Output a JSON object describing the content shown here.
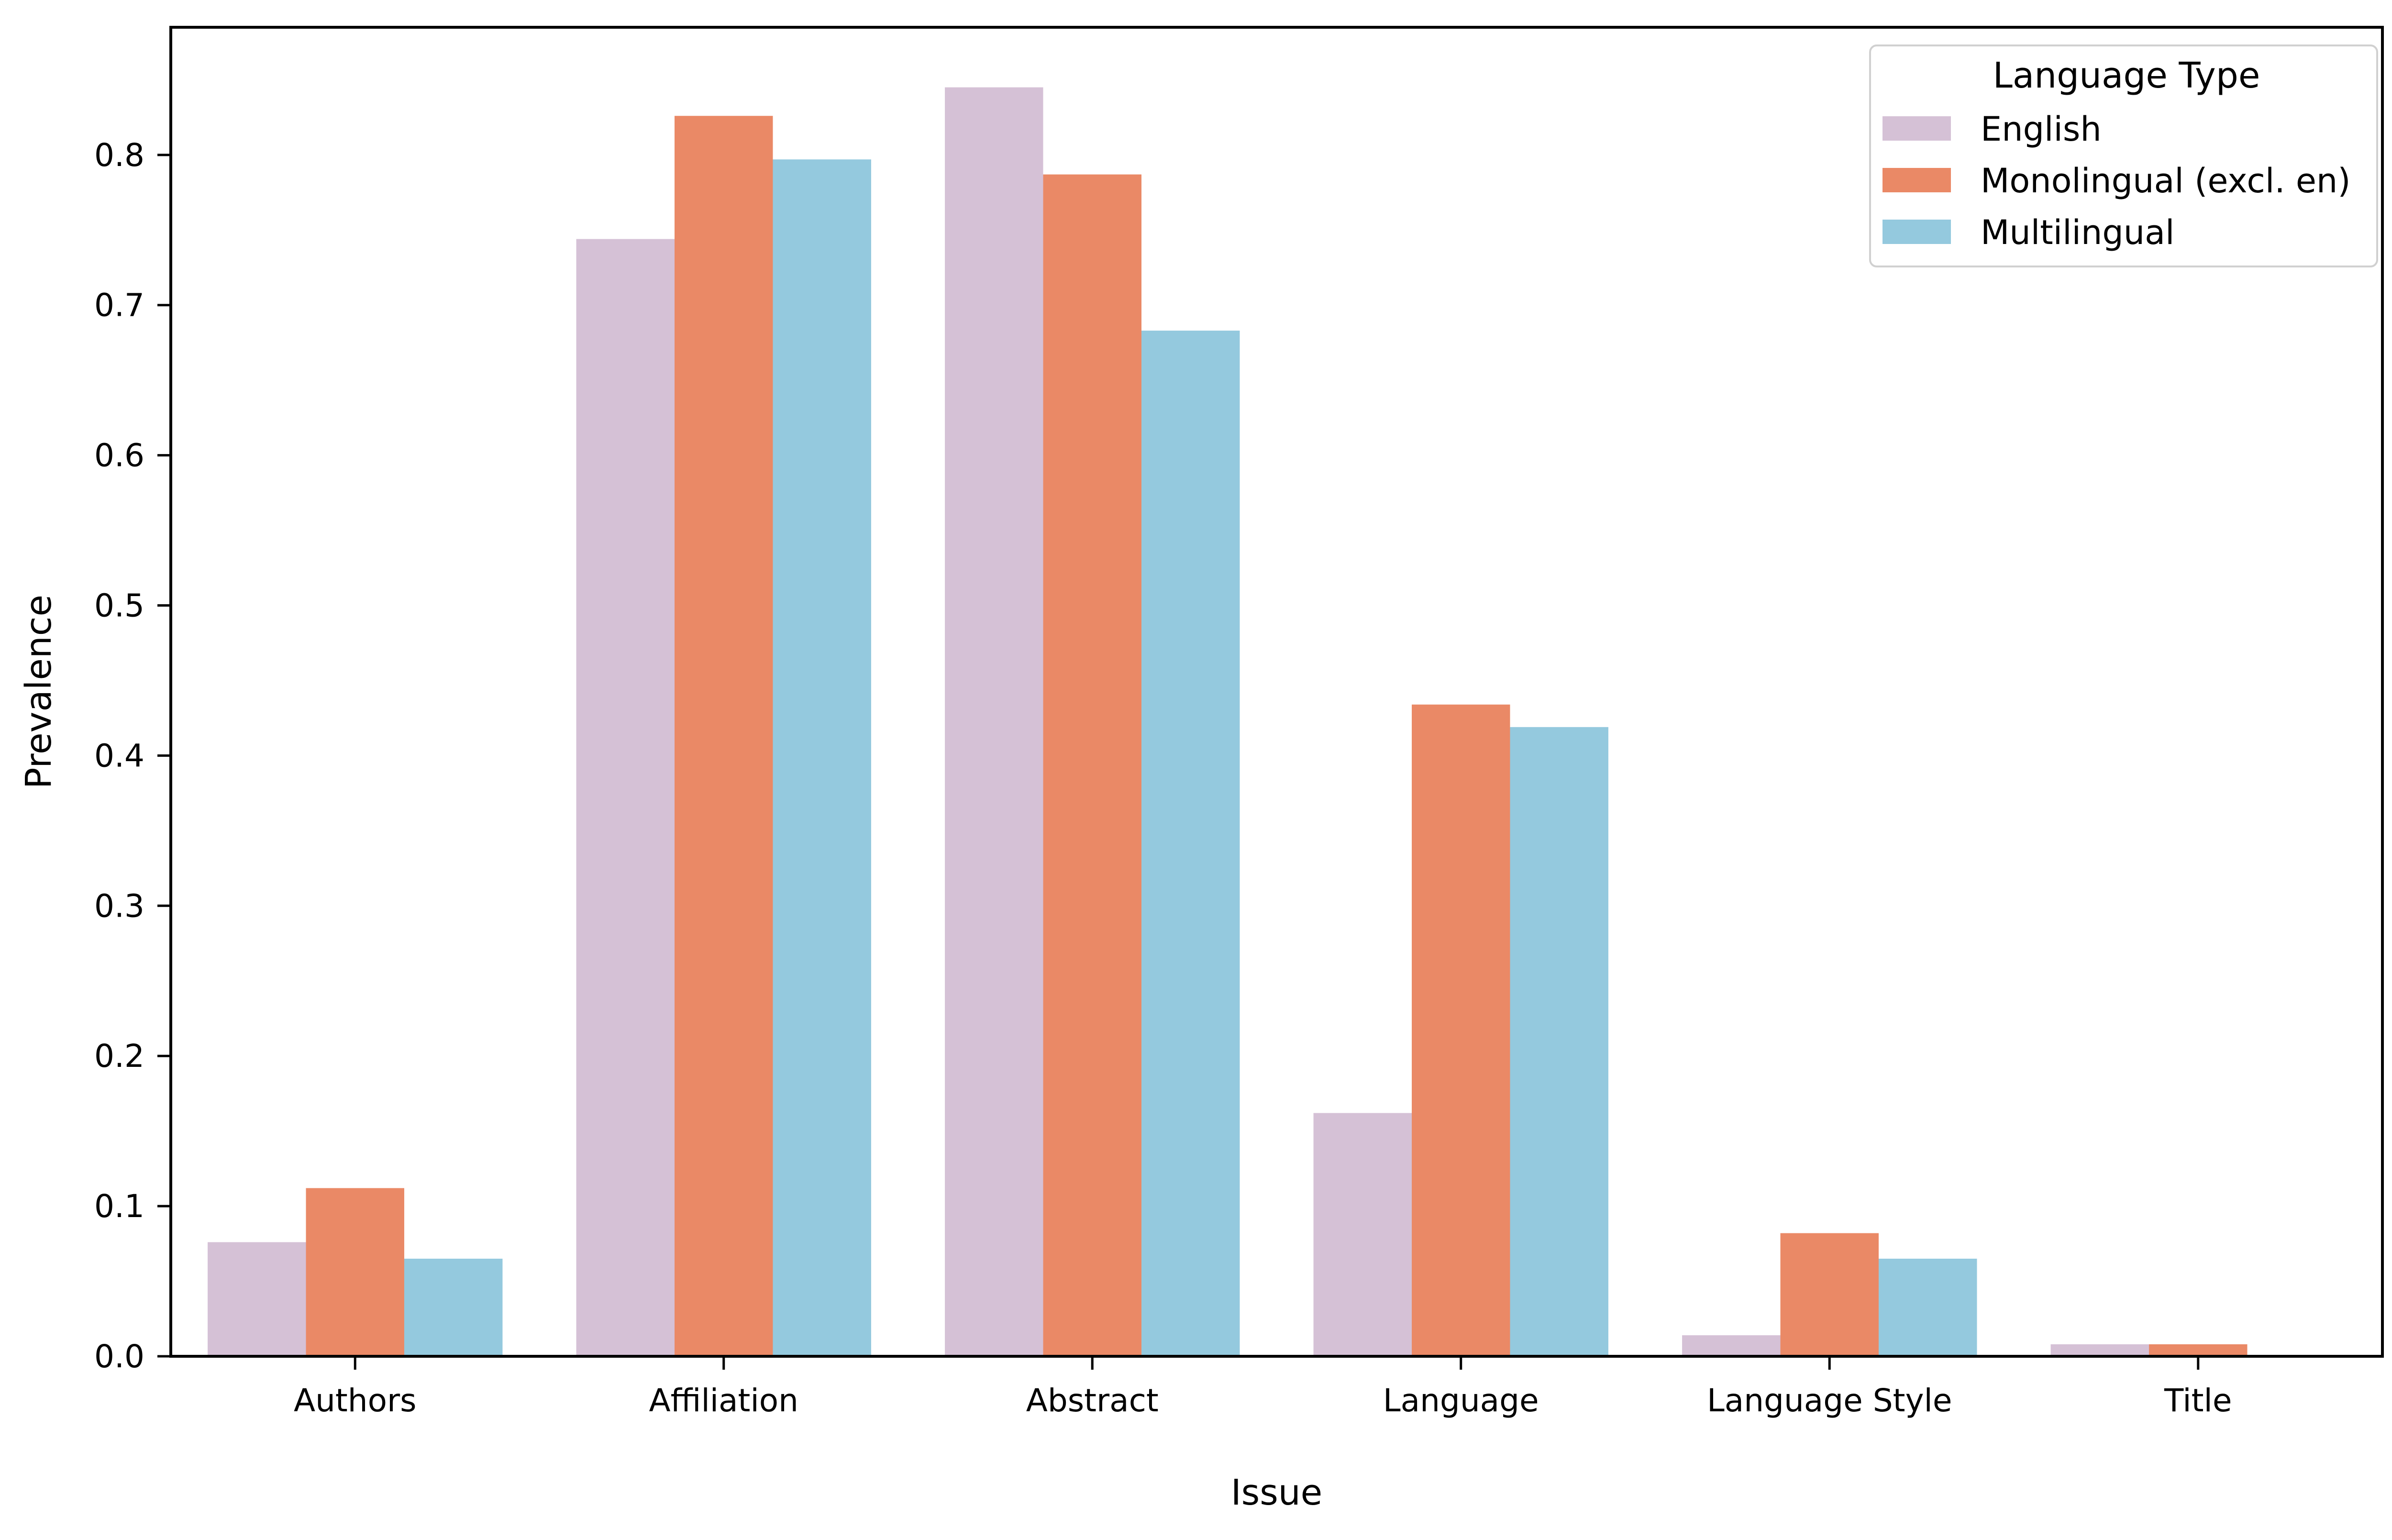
{
  "chart_data": {
    "type": "bar",
    "title": "",
    "xlabel": "Issue",
    "ylabel": "Prevalence",
    "ylim": [
      0,
      0.885
    ],
    "yticks": [
      "0.0",
      "0.1",
      "0.2",
      "0.3",
      "0.4",
      "0.5",
      "0.6",
      "0.7",
      "0.8"
    ],
    "categories": [
      "Authors",
      "Affiliation",
      "Abstract",
      "Language",
      "Language Style",
      "Title"
    ],
    "series": [
      {
        "name": "English",
        "color": "#d5c1d6",
        "values": [
          0.076,
          0.744,
          0.845,
          0.162,
          0.014,
          0.008
        ]
      },
      {
        "name": "Monolingual (excl. en)",
        "color": "#ea8966",
        "values": [
          0.112,
          0.826,
          0.787,
          0.434,
          0.082,
          0.008
        ]
      },
      {
        "name": "Multilingual",
        "color": "#94c9de",
        "values": [
          0.065,
          0.797,
          0.683,
          0.419,
          0.065,
          0.0
        ]
      }
    ],
    "legend": {
      "title": "Language Type",
      "placement": "top-right"
    },
    "grid": false
  }
}
